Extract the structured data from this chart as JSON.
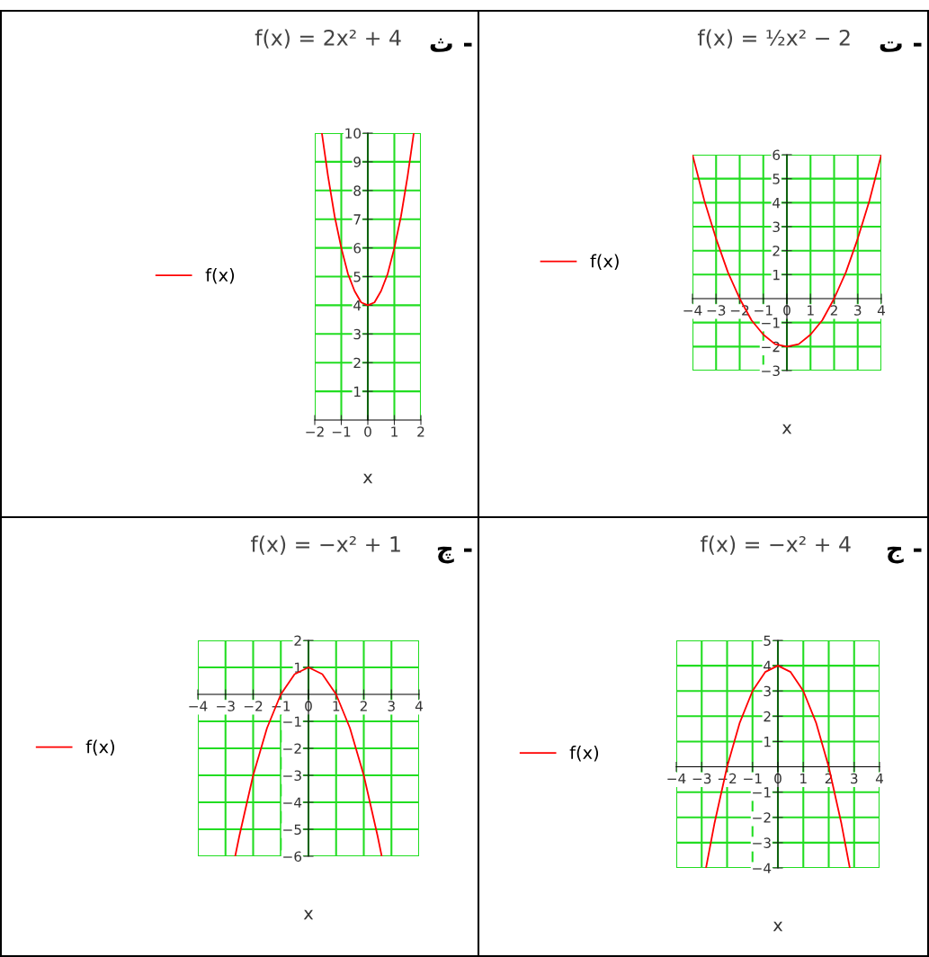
{
  "chart_data": [
    {
      "type": "line",
      "title": "f(x) = 2x² + 4",
      "annotations": [
        "ث -"
      ],
      "xlabel": "x",
      "legend": "left",
      "grid": true,
      "marker": "none",
      "line_style": "solid",
      "series": [
        {
          "name": "f(x)",
          "color": "#ff0000",
          "x": [
            -1.73,
            -1.5,
            -1.25,
            -1,
            -0.75,
            -0.5,
            -0.25,
            0,
            0.25,
            0.5,
            0.75,
            1,
            1.25,
            1.5,
            1.73
          ],
          "values": [
            9.99,
            8.5,
            7.1,
            6,
            5.1,
            4.5,
            4.1,
            4,
            4.1,
            4.5,
            5.1,
            6,
            7.1,
            8.5,
            9.99
          ]
        }
      ],
      "xlim": [
        -2,
        2
      ],
      "ylim": [
        0,
        10
      ],
      "xticks": [
        {
          "value": -2,
          "label": "−2"
        },
        {
          "value": -1,
          "label": "−1"
        },
        0,
        1,
        2
      ],
      "yticks": [
        1,
        2,
        3,
        4,
        5,
        6,
        7,
        8,
        9,
        10
      ]
    },
    {
      "type": "line",
      "title": "f(x) = ½x² − 2",
      "annotations": [
        "ت -"
      ],
      "xlabel": "x",
      "legend": "left",
      "grid": true,
      "marker": "none",
      "line_style": "solid",
      "series": [
        {
          "name": "f(x)",
          "color": "#ff0000",
          "x": [
            -4,
            -3.5,
            -3,
            -2.5,
            -2,
            -1.5,
            -1,
            -0.5,
            0,
            0.5,
            1,
            1.5,
            2,
            2.5,
            3,
            3.5,
            4
          ],
          "values": [
            6,
            4.1,
            2.5,
            1.1,
            0,
            -0.9,
            -1.5,
            -1.9,
            -2,
            -1.9,
            -1.5,
            -0.9,
            0,
            1.1,
            2.5,
            4.1,
            6
          ]
        }
      ],
      "xlim": [
        -4,
        4
      ],
      "ylim": [
        -3,
        6
      ],
      "xticks": [
        {
          "value": -4,
          "label": "−4"
        },
        {
          "value": -3,
          "label": "−3"
        },
        {
          "value": -2,
          "label": "−2"
        },
        {
          "value": -1,
          "label": "−1"
        },
        0,
        1,
        2,
        3,
        4
      ],
      "yticks": [
        {
          "value": -3,
          "label": "−3"
        },
        {
          "value": -2,
          "label": "−2"
        },
        {
          "value": -1,
          "label": "−1"
        },
        1,
        2,
        3,
        4,
        5,
        6
      ]
    },
    {
      "type": "line",
      "title": "f(x) = −x² + 1",
      "annotations": [
        "چ -"
      ],
      "xlabel": "x",
      "legend": "left",
      "grid": true,
      "marker": "none",
      "line_style": "solid",
      "series": [
        {
          "name": "f(x)",
          "color": "#ff0000",
          "x": [
            -2.65,
            -2.5,
            -2,
            -1.5,
            -1,
            -0.5,
            0,
            0.5,
            1,
            1.5,
            2,
            2.5,
            2.65
          ],
          "values": [
            -6,
            -5.25,
            -3,
            -1.25,
            0,
            0.75,
            1,
            0.75,
            0,
            -1.25,
            -3,
            -5.25,
            -6
          ]
        }
      ],
      "xlim": [
        -4,
        4
      ],
      "ylim": [
        -6,
        2
      ],
      "xticks": [
        {
          "value": -4,
          "label": "−4"
        },
        {
          "value": -3,
          "label": "−3"
        },
        {
          "value": -2,
          "label": "−2"
        },
        {
          "value": -1,
          "label": "−1"
        },
        0,
        1,
        2,
        3,
        4
      ],
      "yticks": [
        {
          "value": -6,
          "label": "−6"
        },
        {
          "value": -5,
          "label": "−5"
        },
        {
          "value": -4,
          "label": "−4"
        },
        {
          "value": -3,
          "label": "−3"
        },
        {
          "value": -2,
          "label": "−2"
        },
        {
          "value": -1,
          "label": "−1"
        },
        1,
        2
      ]
    },
    {
      "type": "line",
      "title": "f(x) = −x² + 4",
      "annotations": [
        "ج -"
      ],
      "xlabel": "x",
      "legend": "left",
      "grid": true,
      "marker": "none",
      "line_style": "solid",
      "series": [
        {
          "name": "f(x)",
          "color": "#ff0000",
          "x": [
            -2.83,
            -2.5,
            -2,
            -1.5,
            -1,
            -0.5,
            0,
            0.5,
            1,
            1.5,
            2,
            2.5,
            2.83
          ],
          "values": [
            -4,
            -2.25,
            0,
            1.75,
            3,
            3.75,
            4,
            3.75,
            3,
            1.75,
            0,
            -2.25,
            -4
          ]
        }
      ],
      "xlim": [
        -4,
        4
      ],
      "ylim": [
        -4,
        5
      ],
      "xticks": [
        {
          "value": -4,
          "label": "−4"
        },
        {
          "value": -3,
          "label": "−3"
        },
        {
          "value": -2,
          "label": "−2"
        },
        {
          "value": -1,
          "label": "−1"
        },
        0,
        1,
        2,
        3,
        4
      ],
      "yticks": [
        {
          "value": -4,
          "label": "−4"
        },
        {
          "value": -3,
          "label": "−3"
        },
        {
          "value": -2,
          "label": "−2"
        },
        {
          "value": -1,
          "label": "−1"
        },
        1,
        2,
        3,
        4,
        5
      ]
    }
  ]
}
